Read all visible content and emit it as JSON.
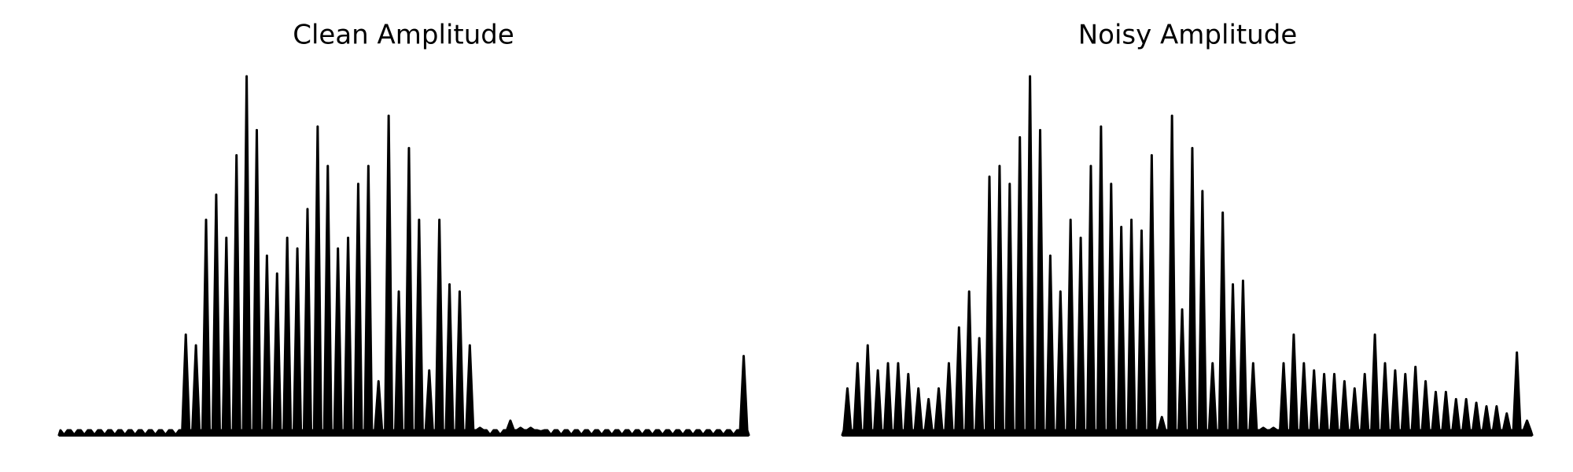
{
  "chart_data": [
    {
      "type": "area",
      "title": "Clean Amplitude",
      "color": "#000000",
      "ylim": [
        0,
        1
      ],
      "values": [
        0,
        0,
        0,
        0,
        0,
        0,
        0,
        0,
        0,
        0,
        0,
        0,
        0.28,
        0.25,
        0.6,
        0.67,
        0.55,
        0.78,
        1.0,
        0.85,
        0.5,
        0.45,
        0.55,
        0.52,
        0.63,
        0.86,
        0.75,
        0.52,
        0.55,
        0.7,
        0.75,
        0.15,
        0.89,
        0.4,
        0.8,
        0.6,
        0.18,
        0.6,
        0.42,
        0.4,
        0.25,
        0.02,
        0,
        0,
        0.04,
        0.02,
        0.02,
        0.01,
        0,
        0,
        0,
        0,
        0,
        0,
        0,
        0,
        0,
        0,
        0,
        0,
        0,
        0,
        0,
        0,
        0,
        0,
        0,
        0.22
      ]
    },
    {
      "type": "area",
      "title": "Noisy Amplitude",
      "color": "#000000",
      "ylim": [
        0,
        1
      ],
      "values": [
        0.13,
        0.2,
        0.25,
        0.18,
        0.2,
        0.2,
        0.17,
        0.13,
        0.1,
        0.13,
        0.2,
        0.3,
        0.4,
        0.27,
        0.72,
        0.75,
        0.7,
        0.83,
        1.0,
        0.85,
        0.5,
        0.4,
        0.6,
        0.55,
        0.75,
        0.86,
        0.7,
        0.58,
        0.6,
        0.57,
        0.78,
        0.05,
        0.89,
        0.35,
        0.8,
        0.68,
        0.2,
        0.62,
        0.42,
        0.43,
        0.2,
        0.02,
        0.02,
        0.2,
        0.28,
        0.2,
        0.18,
        0.17,
        0.17,
        0.15,
        0.13,
        0.17,
        0.28,
        0.2,
        0.18,
        0.17,
        0.19,
        0.15,
        0.12,
        0.12,
        0.1,
        0.1,
        0.09,
        0.08,
        0.08,
        0.06,
        0.23,
        0.04
      ]
    }
  ]
}
